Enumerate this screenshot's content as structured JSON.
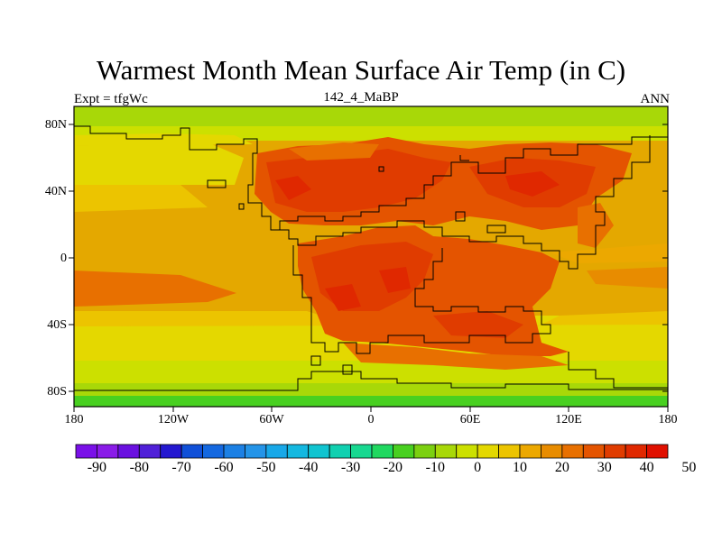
{
  "title": "Warmest Month Mean Surface Air Temp (in C)",
  "subtitle_left": "Expt = tfgWc",
  "subtitle_center": "142_4_MaBP",
  "subtitle_right": "ANN",
  "lat_labels": [
    "80N",
    "40N",
    "0",
    "40S",
    "80S"
  ],
  "lon_labels": [
    "180",
    "120W",
    "60W",
    "0",
    "60E",
    "120E",
    "180"
  ],
  "colorbar": {
    "labels": [
      "-90",
      "-80",
      "-70",
      "-60",
      "-50",
      "-40",
      "-30",
      "-20",
      "-10",
      "0",
      "10",
      "20",
      "30",
      "40",
      "50"
    ],
    "colors": [
      "#7a10e8",
      "#8a1ce8",
      "#6a10e0",
      "#5020d8",
      "#2418d0",
      "#1050d8",
      "#1468e0",
      "#1c80e4",
      "#2494e8",
      "#18a8e8",
      "#14b8e0",
      "#10c4d0",
      "#10d0b0",
      "#18d890",
      "#20d860",
      "#48d020",
      "#7cd010",
      "#a8d808",
      "#cce000",
      "#e4d800",
      "#ecc400",
      "#eca800",
      "#e88c00",
      "#e87000",
      "#e45400",
      "#e03c00",
      "#e02800",
      "#e01000"
    ]
  }
}
